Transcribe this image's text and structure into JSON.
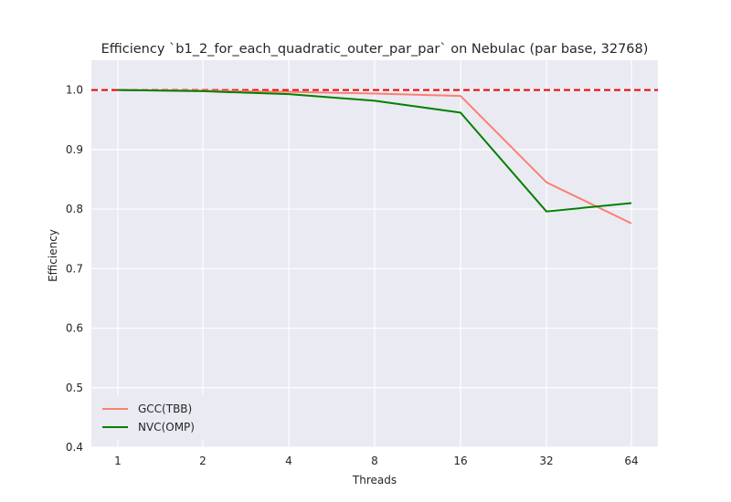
{
  "chart_data": {
    "type": "line",
    "title": "Efficiency `b1_2_for_each_quadratic_outer_par_par` on Nebulac (par base, 32768)",
    "xlabel": "Threads",
    "ylabel": "Efficiency",
    "categories": [
      "1",
      "2",
      "4",
      "8",
      "16",
      "32",
      "64"
    ],
    "ylim": [
      0.4,
      1.05
    ],
    "yticks": [
      "0.4",
      "0.5",
      "0.6",
      "0.7",
      "0.8",
      "0.9",
      "1.0"
    ],
    "reference_line": {
      "y": 1.0,
      "style": "dashed",
      "color": "#ee0000"
    },
    "grid": true,
    "legend_position": "lower-left",
    "series": [
      {
        "name": "GCC(TBB)",
        "color": "#fa8072",
        "values": [
          1.0,
          0.999,
          0.997,
          0.994,
          0.99,
          0.845,
          0.776
        ]
      },
      {
        "name": "NVC(OMP)",
        "color": "#008000",
        "values": [
          1.0,
          0.998,
          0.993,
          0.982,
          0.962,
          0.796,
          0.81
        ]
      }
    ]
  }
}
